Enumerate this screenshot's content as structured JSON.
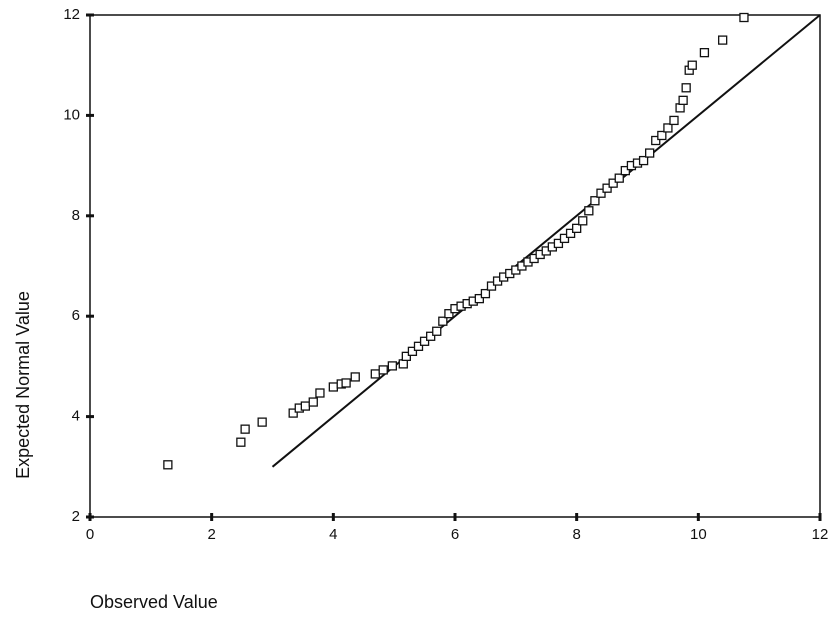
{
  "chart_data": {
    "type": "scatter",
    "x_label": "Observed Value",
    "y_label": "Expected Normal Value",
    "xlim": [
      0,
      12
    ],
    "ylim": [
      2,
      12
    ],
    "xticks": [
      0,
      2,
      4,
      6,
      8,
      10,
      12
    ],
    "yticks": [
      2,
      4,
      6,
      8,
      10,
      12
    ],
    "color": "#111111",
    "x": [
      1.28,
      2.48,
      2.55,
      2.83,
      3.34,
      3.44,
      3.54,
      3.67,
      3.78,
      4.0,
      4.13,
      4.21,
      4.36,
      4.69,
      4.82,
      4.97,
      5.15,
      5.2,
      5.3,
      5.4,
      5.5,
      5.6,
      5.7,
      5.8,
      5.9,
      6.0,
      6.1,
      6.2,
      6.3,
      6.4,
      6.5,
      6.6,
      6.7,
      6.8,
      6.9,
      7.0,
      7.1,
      7.2,
      7.3,
      7.4,
      7.5,
      7.6,
      7.7,
      7.8,
      7.9,
      8.0,
      8.1,
      8.2,
      8.3,
      8.4,
      8.5,
      8.6,
      8.7,
      8.8,
      8.9,
      9.0,
      9.1,
      9.2,
      9.3,
      9.4,
      9.5,
      9.6,
      9.7,
      9.75,
      9.8,
      9.85,
      9.9,
      10.1,
      10.4,
      10.75
    ],
    "values": [
      3.04,
      3.49,
      3.75,
      3.89,
      4.07,
      4.17,
      4.21,
      4.29,
      4.47,
      4.59,
      4.65,
      4.67,
      4.79,
      4.85,
      4.93,
      5.01,
      5.05,
      5.2,
      5.3,
      5.4,
      5.5,
      5.6,
      5.7,
      5.9,
      6.05,
      6.15,
      6.2,
      6.25,
      6.3,
      6.35,
      6.45,
      6.6,
      6.7,
      6.78,
      6.85,
      6.92,
      7.0,
      7.08,
      7.15,
      7.23,
      7.3,
      7.38,
      7.45,
      7.55,
      7.65,
      7.75,
      7.9,
      8.1,
      8.3,
      8.45,
      8.55,
      8.65,
      8.75,
      8.9,
      9.0,
      9.05,
      9.1,
      9.25,
      9.5,
      9.6,
      9.75,
      9.9,
      10.15,
      10.3,
      10.55,
      10.9,
      11.0,
      11.25,
      11.5,
      11.95
    ],
    "reference_line": {
      "x": [
        3,
        12
      ],
      "y": [
        3,
        12
      ]
    }
  }
}
